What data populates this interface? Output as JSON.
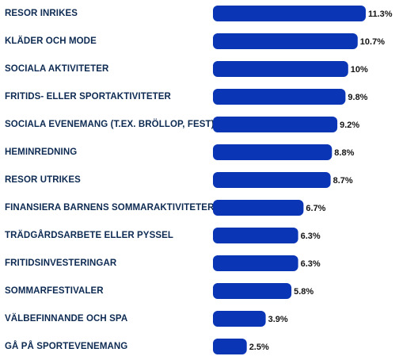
{
  "chart_data": {
    "type": "bar",
    "orientation": "horizontal",
    "categories": [
      "RESOR INRIKES",
      "KLÄDER OCH MODE",
      "SOCIALA AKTIVITETER",
      "FRITIDS- ELLER SPORTAKTIVITETER",
      "SOCIALA EVENEMANG (T.EX. BRÖLLOP, FEST)",
      "HEMINREDNING",
      "RESOR UTRIKES",
      "FINANSIERA BARNENS SOMMARAKTIVITETER",
      "TRÄDGÅRDSARBETE ELLER PYSSEL",
      "FRITIDSINVESTERINGAR",
      "SOMMARFESTIVALER",
      "VÄLBEFINNANDE OCH SPA",
      "GÅ PÅ SPORTEVENEMANG"
    ],
    "values": [
      11.3,
      10.7,
      10,
      9.8,
      9.2,
      8.8,
      8.7,
      6.7,
      6.3,
      6.3,
      5.8,
      3.9,
      2.5
    ],
    "value_labels": [
      "11.3%",
      "10.7%",
      "10%",
      "9.8%",
      "9.2%",
      "8.8%",
      "8.7%",
      "6.7%",
      "6.3%",
      "6.3%",
      "5.8%",
      "3.9%",
      "2.5%"
    ],
    "xlim": [
      0,
      11.3
    ],
    "grid": false,
    "bar_color": "#0a35b5",
    "label_color": "#0d2a52",
    "value_color": "#141414"
  }
}
